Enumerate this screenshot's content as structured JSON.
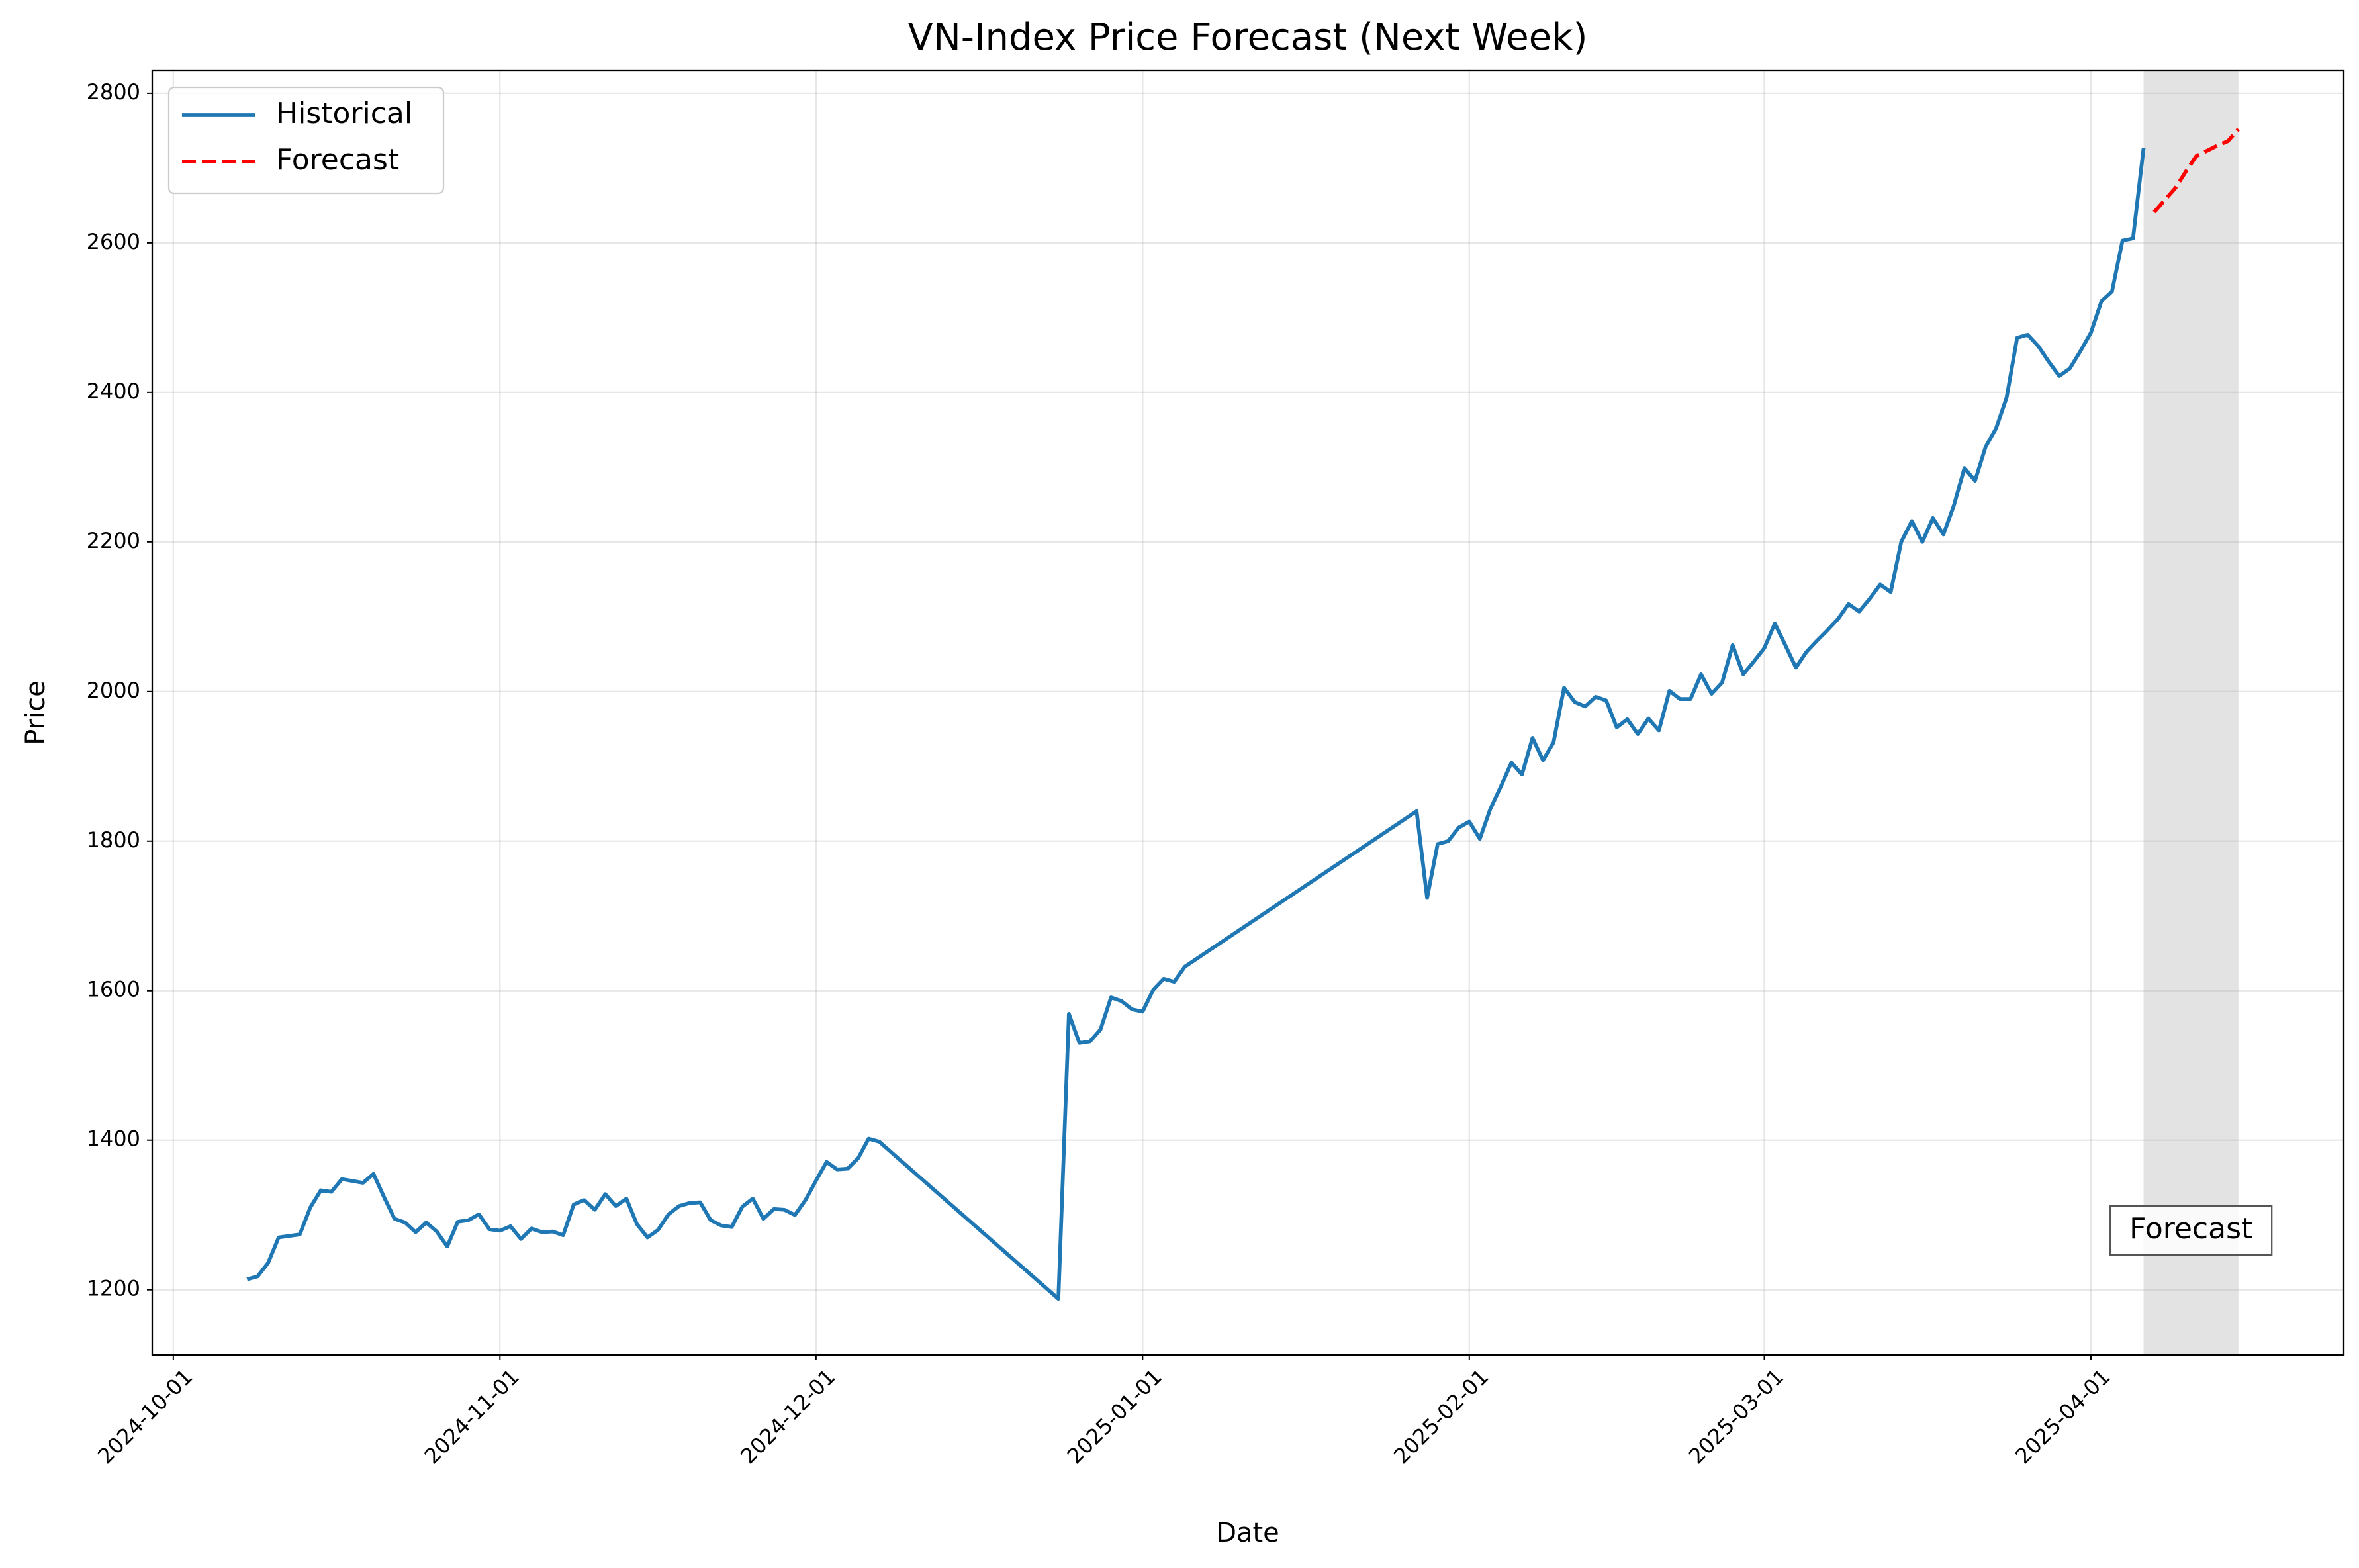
{
  "chart_data": {
    "type": "line",
    "title": "VN-Index Price Forecast (Next Week)",
    "x_label": "Date",
    "y_label": "Price",
    "annotation": "Forecast",
    "grid": true,
    "legend": "upper left",
    "shade_forecast": true,
    "xlim": [
      "2024-09-29",
      "2025-04-25"
    ],
    "xticks": [
      "2024-10-01",
      "2024-11-01",
      "2024-12-01",
      "2025-01-01",
      "2025-02-01",
      "2025-03-01",
      "2025-04-01"
    ],
    "ylim": [
      1113,
      2830
    ],
    "yticks": [
      1200,
      1400,
      1600,
      1800,
      2000,
      2200,
      2400,
      2600,
      2800
    ],
    "series": [
      {
        "name": "Historical",
        "color": "#1f77b4",
        "dash": false,
        "x": [
          "2024-10-08",
          "2024-10-09",
          "2024-10-10",
          "2024-10-11",
          "2024-10-13",
          "2024-10-14",
          "2024-10-15",
          "2024-10-16",
          "2024-10-17",
          "2024-10-19",
          "2024-10-20",
          "2024-10-21",
          "2024-10-22",
          "2024-10-23",
          "2024-10-24",
          "2024-10-25",
          "2024-10-26",
          "2024-10-27",
          "2024-10-28",
          "2024-10-29",
          "2024-10-30",
          "2024-10-31",
          "2024-11-01",
          "2024-11-02",
          "2024-11-03",
          "2024-11-04",
          "2024-11-05",
          "2024-11-06",
          "2024-11-07",
          "2024-11-08",
          "2024-11-09",
          "2024-11-10",
          "2024-11-11",
          "2024-11-12",
          "2024-11-13",
          "2024-11-14",
          "2024-11-15",
          "2024-11-16",
          "2024-11-17",
          "2024-11-18",
          "2024-11-19",
          "2024-11-20",
          "2024-11-21",
          "2024-11-22",
          "2024-11-23",
          "2024-11-24",
          "2024-11-25",
          "2024-11-26",
          "2024-11-27",
          "2024-11-28",
          "2024-11-29",
          "2024-11-30",
          "2024-12-01",
          "2024-12-02",
          "2024-12-03",
          "2024-12-04",
          "2024-12-05",
          "2024-12-06",
          "2024-12-07",
          "2024-12-24",
          "2024-12-25",
          "2024-12-26",
          "2024-12-27",
          "2024-12-28",
          "2024-12-29",
          "2024-12-30",
          "2024-12-31",
          "2025-01-01",
          "2025-01-02",
          "2025-01-03",
          "2025-01-04",
          "2025-01-05",
          "2025-01-27",
          "2025-01-28",
          "2025-01-29",
          "2025-01-30",
          "2025-01-31",
          "2025-02-01",
          "2025-02-02",
          "2025-02-03",
          "2025-02-04",
          "2025-02-05",
          "2025-02-06",
          "2025-02-07",
          "2025-02-08",
          "2025-02-09",
          "2025-02-10",
          "2025-02-11",
          "2025-02-12",
          "2025-02-13",
          "2025-02-14",
          "2025-02-15",
          "2025-02-16",
          "2025-02-17",
          "2025-02-18",
          "2025-02-19",
          "2025-02-20",
          "2025-02-21",
          "2025-02-22",
          "2025-02-23",
          "2025-02-24",
          "2025-02-25",
          "2025-02-26",
          "2025-02-27",
          "2025-02-28",
          "2025-03-01",
          "2025-03-02",
          "2025-03-03",
          "2025-03-04",
          "2025-03-05",
          "2025-03-06",
          "2025-03-07",
          "2025-03-08",
          "2025-03-09",
          "2025-03-10",
          "2025-03-11",
          "2025-03-12",
          "2025-03-13",
          "2025-03-14",
          "2025-03-15",
          "2025-03-16",
          "2025-03-17",
          "2025-03-18",
          "2025-03-19",
          "2025-03-20",
          "2025-03-21",
          "2025-03-22",
          "2025-03-23",
          "2025-03-24",
          "2025-03-25",
          "2025-03-26",
          "2025-03-27",
          "2025-03-28",
          "2025-03-29",
          "2025-03-30",
          "2025-03-31",
          "2025-04-01",
          "2025-04-02",
          "2025-04-03",
          "2025-04-04",
          "2025-04-05",
          "2025-04-06"
        ],
        "values": [
          1214,
          1218,
          1236,
          1270,
          1274,
          1310,
          1333,
          1331,
          1348,
          1343,
          1355,
          1324,
          1295,
          1290,
          1277,
          1290,
          1278,
          1258,
          1291,
          1293,
          1301,
          1281,
          1279,
          1285,
          1268,
          1282,
          1277,
          1278,
          1273,
          1314,
          1320,
          1307,
          1328,
          1312,
          1322,
          1288,
          1270,
          1280,
          1301,
          1312,
          1316,
          1317,
          1293,
          1286,
          1284,
          1311,
          1322,
          1295,
          1308,
          1307,
          1300,
          1320,
          1346,
          1371,
          1361,
          1362,
          1376,
          1402,
          1398,
          1188,
          1569,
          1530,
          1532,
          1548,
          1591,
          1586,
          1575,
          1572,
          1601,
          1616,
          1612,
          1632,
          1840,
          1724,
          1796,
          1800,
          1818,
          1826,
          1803,
          1843,
          1873,
          1905,
          1889,
          1938,
          1908,
          1932,
          2005,
          1986,
          1980,
          1993,
          1988,
          1952,
          1963,
          1943,
          1964,
          1948,
          2001,
          1990,
          1990,
          2023,
          1997,
          2012,
          2062,
          2023,
          2040,
          2058,
          2091,
          2062,
          2032,
          2053,
          2068,
          2082,
          2097,
          2117,
          2107,
          2124,
          2143,
          2133,
          2200,
          2228,
          2200,
          2232,
          2210,
          2249,
          2299,
          2282,
          2327,
          2352,
          2393,
          2473,
          2477,
          2462,
          2441,
          2422,
          2432,
          2455,
          2480,
          2522,
          2535,
          2603,
          2606,
          2727
        ]
      },
      {
        "name": "Forecast",
        "color": "#ff0000",
        "dash": true,
        "x": [
          "2025-04-07",
          "2025-04-08",
          "2025-04-09",
          "2025-04-10",
          "2025-04-11",
          "2025-04-12",
          "2025-04-13",
          "2025-04-14",
          "2025-04-15"
        ],
        "values": [
          2641,
          2657,
          2673,
          2695,
          2716,
          2723,
          2730,
          2736,
          2752
        ]
      }
    ]
  }
}
